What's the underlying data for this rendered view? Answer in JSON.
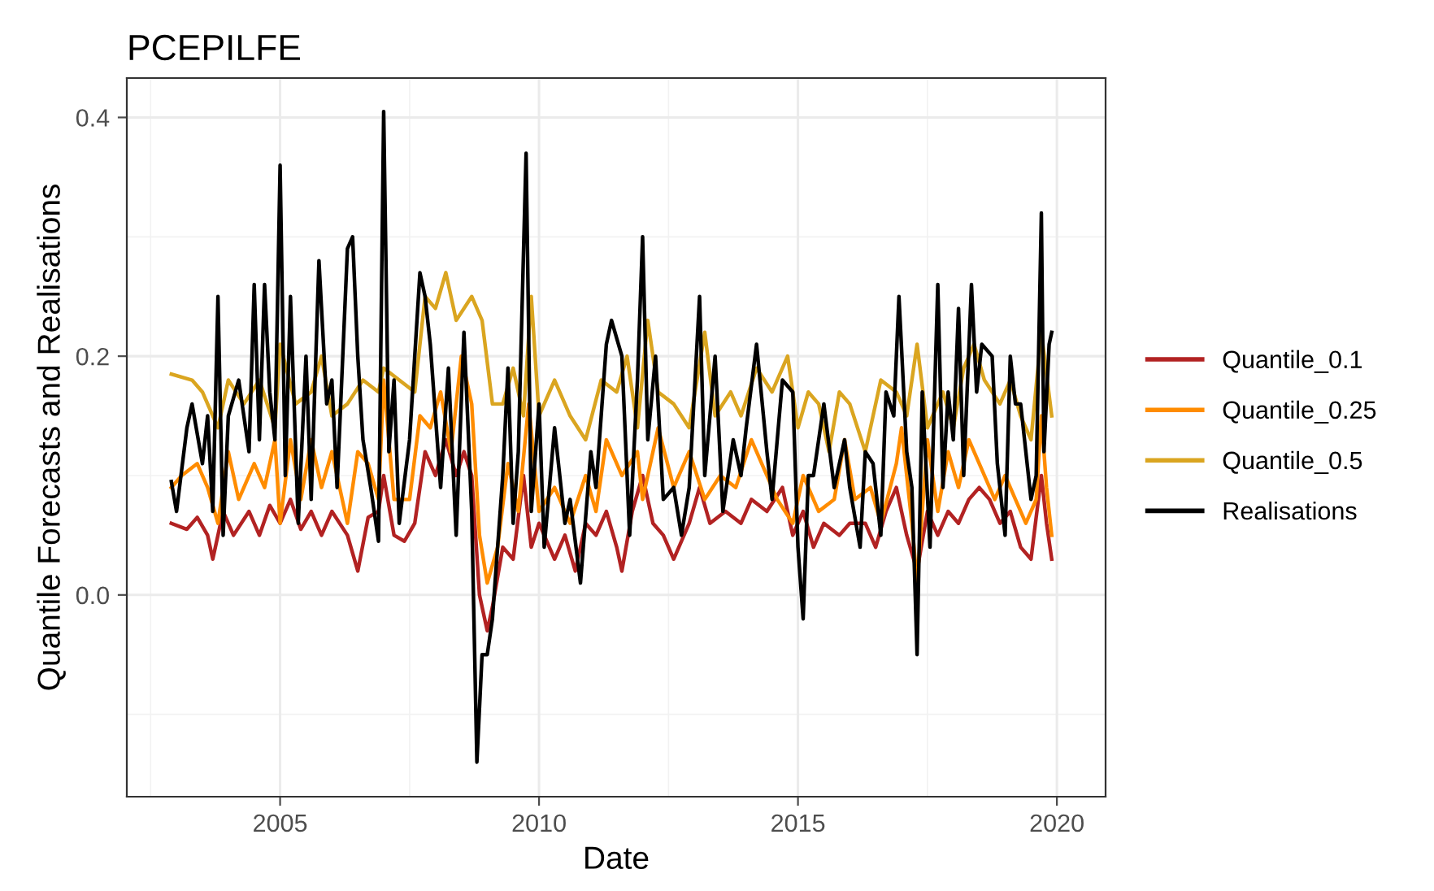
{
  "chart_data": {
    "type": "line",
    "title": "PCEPILFE",
    "xlabel": "Date",
    "ylabel": "Quantile Forecasts and Realisations",
    "xlim": [
      2002.04,
      2020.94
    ],
    "ylim": [
      -0.169,
      0.433
    ],
    "xticks": [
      2005,
      2010,
      2015,
      2020
    ],
    "yticks": [
      {
        "value": 0,
        "label": "0.0"
      },
      {
        "value": 0.2,
        "label": "0.2"
      },
      {
        "value": 0.4,
        "label": "0.4"
      }
    ],
    "grid": true,
    "legend": "right",
    "line_style": "solid",
    "marker": "none",
    "series": [
      {
        "name": "Quantile_0.1",
        "color": "#b22222",
        "x": [
          2002.9,
          2003.2,
          2003.4,
          2003.6,
          2003.7,
          2003.9,
          2004.1,
          2004.4,
          2004.6,
          2004.8,
          2005.0,
          2005.2,
          2005.4,
          2005.6,
          2005.8,
          2006.0,
          2006.3,
          2006.5,
          2006.7,
          2006.9,
          2007.0,
          2007.2,
          2007.4,
          2007.6,
          2007.8,
          2008.0,
          2008.2,
          2008.4,
          2008.55,
          2008.7,
          2008.85,
          2009.0,
          2009.1,
          2009.3,
          2009.5,
          2009.7,
          2009.85,
          2010.0,
          2010.3,
          2010.5,
          2010.7,
          2010.9,
          2011.1,
          2011.3,
          2011.5,
          2011.6,
          2011.8,
          2012.0,
          2012.2,
          2012.4,
          2012.6,
          2012.9,
          2013.1,
          2013.3,
          2013.6,
          2013.9,
          2014.1,
          2014.4,
          2014.7,
          2014.9,
          2015.1,
          2015.3,
          2015.5,
          2015.8,
          2016.0,
          2016.3,
          2016.5,
          2016.7,
          2016.9,
          2017.1,
          2017.3,
          2017.5,
          2017.7,
          2017.9,
          2018.1,
          2018.3,
          2018.5,
          2018.7,
          2018.9,
          2019.1,
          2019.3,
          2019.5,
          2019.7,
          2019.8,
          2019.9
        ],
        "values": [
          0.06,
          0.055,
          0.065,
          0.05,
          0.03,
          0.07,
          0.05,
          0.07,
          0.05,
          0.075,
          0.06,
          0.08,
          0.055,
          0.07,
          0.05,
          0.07,
          0.05,
          0.02,
          0.065,
          0.07,
          0.1,
          0.05,
          0.045,
          0.06,
          0.12,
          0.1,
          0.13,
          0.1,
          0.12,
          0.1,
          0.0,
          -0.03,
          -0.01,
          0.04,
          0.03,
          0.1,
          0.04,
          0.06,
          0.03,
          0.05,
          0.02,
          0.06,
          0.05,
          0.07,
          0.04,
          0.02,
          0.07,
          0.1,
          0.06,
          0.05,
          0.03,
          0.06,
          0.09,
          0.06,
          0.07,
          0.06,
          0.08,
          0.07,
          0.09,
          0.05,
          0.07,
          0.04,
          0.06,
          0.05,
          0.06,
          0.06,
          0.04,
          0.07,
          0.09,
          0.05,
          0.02,
          0.07,
          0.05,
          0.07,
          0.06,
          0.08,
          0.09,
          0.08,
          0.06,
          0.07,
          0.04,
          0.03,
          0.1,
          0.06,
          0.03
        ]
      },
      {
        "name": "Quantile_0.25",
        "color": "#ff8c00",
        "x": [
          2002.9,
          2003.1,
          2003.4,
          2003.6,
          2003.8,
          2004.0,
          2004.2,
          2004.5,
          2004.7,
          2004.9,
          2005.0,
          2005.2,
          2005.4,
          2005.6,
          2005.8,
          2006.0,
          2006.3,
          2006.5,
          2006.7,
          2006.9,
          2007.0,
          2007.2,
          2007.5,
          2007.7,
          2007.9,
          2008.1,
          2008.3,
          2008.5,
          2008.7,
          2008.85,
          2009.0,
          2009.2,
          2009.4,
          2009.6,
          2009.8,
          2010.0,
          2010.3,
          2010.6,
          2010.9,
          2011.1,
          2011.3,
          2011.6,
          2011.9,
          2012.0,
          2012.3,
          2012.6,
          2012.9,
          2013.2,
          2013.5,
          2013.8,
          2014.1,
          2014.4,
          2014.6,
          2014.9,
          2015.1,
          2015.4,
          2015.7,
          2015.9,
          2016.1,
          2016.4,
          2016.6,
          2016.9,
          2017.0,
          2017.2,
          2017.3,
          2017.5,
          2017.7,
          2017.9,
          2018.1,
          2018.3,
          2018.6,
          2018.8,
          2019.0,
          2019.2,
          2019.4,
          2019.6,
          2019.7,
          2019.8,
          2019.9
        ],
        "values": [
          0.09,
          0.1,
          0.11,
          0.09,
          0.06,
          0.12,
          0.08,
          0.11,
          0.09,
          0.13,
          0.06,
          0.13,
          0.08,
          0.13,
          0.09,
          0.12,
          0.06,
          0.12,
          0.11,
          0.08,
          0.18,
          0.08,
          0.08,
          0.15,
          0.14,
          0.17,
          0.12,
          0.2,
          0.16,
          0.05,
          0.01,
          0.04,
          0.11,
          0.07,
          0.16,
          0.07,
          0.09,
          0.06,
          0.1,
          0.07,
          0.13,
          0.1,
          0.12,
          0.08,
          0.14,
          0.09,
          0.12,
          0.08,
          0.1,
          0.09,
          0.13,
          0.1,
          0.08,
          0.06,
          0.1,
          0.07,
          0.08,
          0.13,
          0.08,
          0.09,
          0.06,
          0.11,
          0.14,
          0.06,
          0.01,
          0.13,
          0.07,
          0.12,
          0.09,
          0.13,
          0.1,
          0.08,
          0.1,
          0.08,
          0.06,
          0.08,
          0.15,
          0.09,
          0.05
        ]
      },
      {
        "name": "Quantile_0.5",
        "color": "#daa520",
        "x": [
          2002.9,
          2003.3,
          2003.5,
          2003.8,
          2004.0,
          2004.3,
          2004.6,
          2004.9,
          2005.0,
          2005.3,
          2005.6,
          2005.8,
          2006.0,
          2006.3,
          2006.6,
          2006.9,
          2007.0,
          2007.3,
          2007.6,
          2007.8,
          2008.0,
          2008.2,
          2008.4,
          2008.7,
          2008.9,
          2009.1,
          2009.3,
          2009.5,
          2009.7,
          2009.85,
          2010.0,
          2010.3,
          2010.6,
          2010.9,
          2011.2,
          2011.5,
          2011.7,
          2011.9,
          2012.1,
          2012.3,
          2012.6,
          2012.9,
          2013.2,
          2013.4,
          2013.7,
          2013.9,
          2014.2,
          2014.5,
          2014.8,
          2015.0,
          2015.2,
          2015.4,
          2015.6,
          2015.8,
          2016.0,
          2016.3,
          2016.6,
          2016.9,
          2017.1,
          2017.3,
          2017.5,
          2017.8,
          2018.0,
          2018.2,
          2018.4,
          2018.6,
          2018.9,
          2019.1,
          2019.3,
          2019.5,
          2019.7,
          2019.9
        ],
        "values": [
          0.185,
          0.18,
          0.17,
          0.14,
          0.18,
          0.16,
          0.18,
          0.14,
          0.21,
          0.16,
          0.17,
          0.2,
          0.15,
          0.16,
          0.18,
          0.17,
          0.19,
          0.18,
          0.17,
          0.25,
          0.24,
          0.27,
          0.23,
          0.25,
          0.23,
          0.16,
          0.16,
          0.19,
          0.15,
          0.25,
          0.15,
          0.18,
          0.15,
          0.13,
          0.18,
          0.17,
          0.2,
          0.14,
          0.23,
          0.17,
          0.16,
          0.14,
          0.22,
          0.15,
          0.17,
          0.15,
          0.19,
          0.17,
          0.2,
          0.14,
          0.17,
          0.16,
          0.12,
          0.17,
          0.16,
          0.12,
          0.18,
          0.17,
          0.15,
          0.21,
          0.14,
          0.17,
          0.14,
          0.19,
          0.21,
          0.18,
          0.16,
          0.18,
          0.15,
          0.13,
          0.22,
          0.15
        ]
      },
      {
        "name": "Realisations",
        "color": "#000000",
        "x": [
          2002.9,
          2003.0,
          2003.2,
          2003.3,
          2003.5,
          2003.6,
          2003.7,
          2003.8,
          2003.9,
          2004.0,
          2004.2,
          2004.4,
          2004.5,
          2004.6,
          2004.7,
          2004.8,
          2004.9,
          2005.0,
          2005.1,
          2005.2,
          2005.35,
          2005.5,
          2005.6,
          2005.75,
          2005.9,
          2006.0,
          2006.1,
          2006.3,
          2006.4,
          2006.5,
          2006.6,
          2006.75,
          2006.9,
          2007.0,
          2007.1,
          2007.2,
          2007.3,
          2007.5,
          2007.7,
          2007.8,
          2007.9,
          2008.1,
          2008.25,
          2008.4,
          2008.55,
          2008.7,
          2008.8,
          2008.9,
          2009.0,
          2009.1,
          2009.3,
          2009.4,
          2009.5,
          2009.6,
          2009.75,
          2009.85,
          2010.0,
          2010.1,
          2010.3,
          2010.5,
          2010.6,
          2010.8,
          2011.0,
          2011.1,
          2011.3,
          2011.4,
          2011.6,
          2011.75,
          2011.9,
          2012.0,
          2012.1,
          2012.25,
          2012.4,
          2012.6,
          2012.75,
          2012.9,
          2013.1,
          2013.2,
          2013.4,
          2013.55,
          2013.75,
          2013.9,
          2014.0,
          2014.2,
          2014.4,
          2014.5,
          2014.7,
          2014.9,
          2015.0,
          2015.1,
          2015.2,
          2015.3,
          2015.5,
          2015.7,
          2015.9,
          2016.0,
          2016.2,
          2016.3,
          2016.45,
          2016.6,
          2016.7,
          2016.85,
          2016.95,
          2017.1,
          2017.2,
          2017.3,
          2017.4,
          2017.55,
          2017.7,
          2017.8,
          2017.9,
          2018.0,
          2018.1,
          2018.2,
          2018.35,
          2018.45,
          2018.55,
          2018.75,
          2018.85,
          2019.0,
          2019.1,
          2019.2,
          2019.3,
          2019.5,
          2019.6,
          2019.7,
          2019.75,
          2019.85,
          2019.9
        ],
        "values": [
          0.095,
          0.07,
          0.14,
          0.16,
          0.11,
          0.15,
          0.07,
          0.25,
          0.05,
          0.15,
          0.18,
          0.12,
          0.26,
          0.13,
          0.26,
          0.17,
          0.13,
          0.36,
          0.1,
          0.25,
          0.06,
          0.2,
          0.08,
          0.28,
          0.16,
          0.18,
          0.09,
          0.29,
          0.3,
          0.2,
          0.13,
          0.09,
          0.045,
          0.405,
          0.12,
          0.18,
          0.06,
          0.13,
          0.27,
          0.25,
          0.21,
          0.09,
          0.19,
          0.05,
          0.22,
          0.07,
          -0.14,
          -0.05,
          -0.05,
          -0.02,
          0.1,
          0.19,
          0.06,
          0.12,
          0.37,
          0.07,
          0.16,
          0.04,
          0.14,
          0.06,
          0.08,
          0.01,
          0.12,
          0.09,
          0.21,
          0.23,
          0.2,
          0.05,
          0.18,
          0.3,
          0.13,
          0.2,
          0.08,
          0.09,
          0.05,
          0.09,
          0.25,
          0.1,
          0.2,
          0.07,
          0.13,
          0.1,
          0.14,
          0.21,
          0.12,
          0.08,
          0.18,
          0.17,
          0.04,
          -0.02,
          0.1,
          0.1,
          0.16,
          0.09,
          0.13,
          0.09,
          0.04,
          0.12,
          0.11,
          0.05,
          0.17,
          0.15,
          0.25,
          0.12,
          0.09,
          -0.05,
          0.17,
          0.04,
          0.26,
          0.09,
          0.17,
          0.13,
          0.24,
          0.1,
          0.26,
          0.17,
          0.21,
          0.2,
          0.11,
          0.05,
          0.2,
          0.16,
          0.16,
          0.08,
          0.1,
          0.32,
          0.12,
          0.21,
          0.22
        ]
      }
    ]
  }
}
